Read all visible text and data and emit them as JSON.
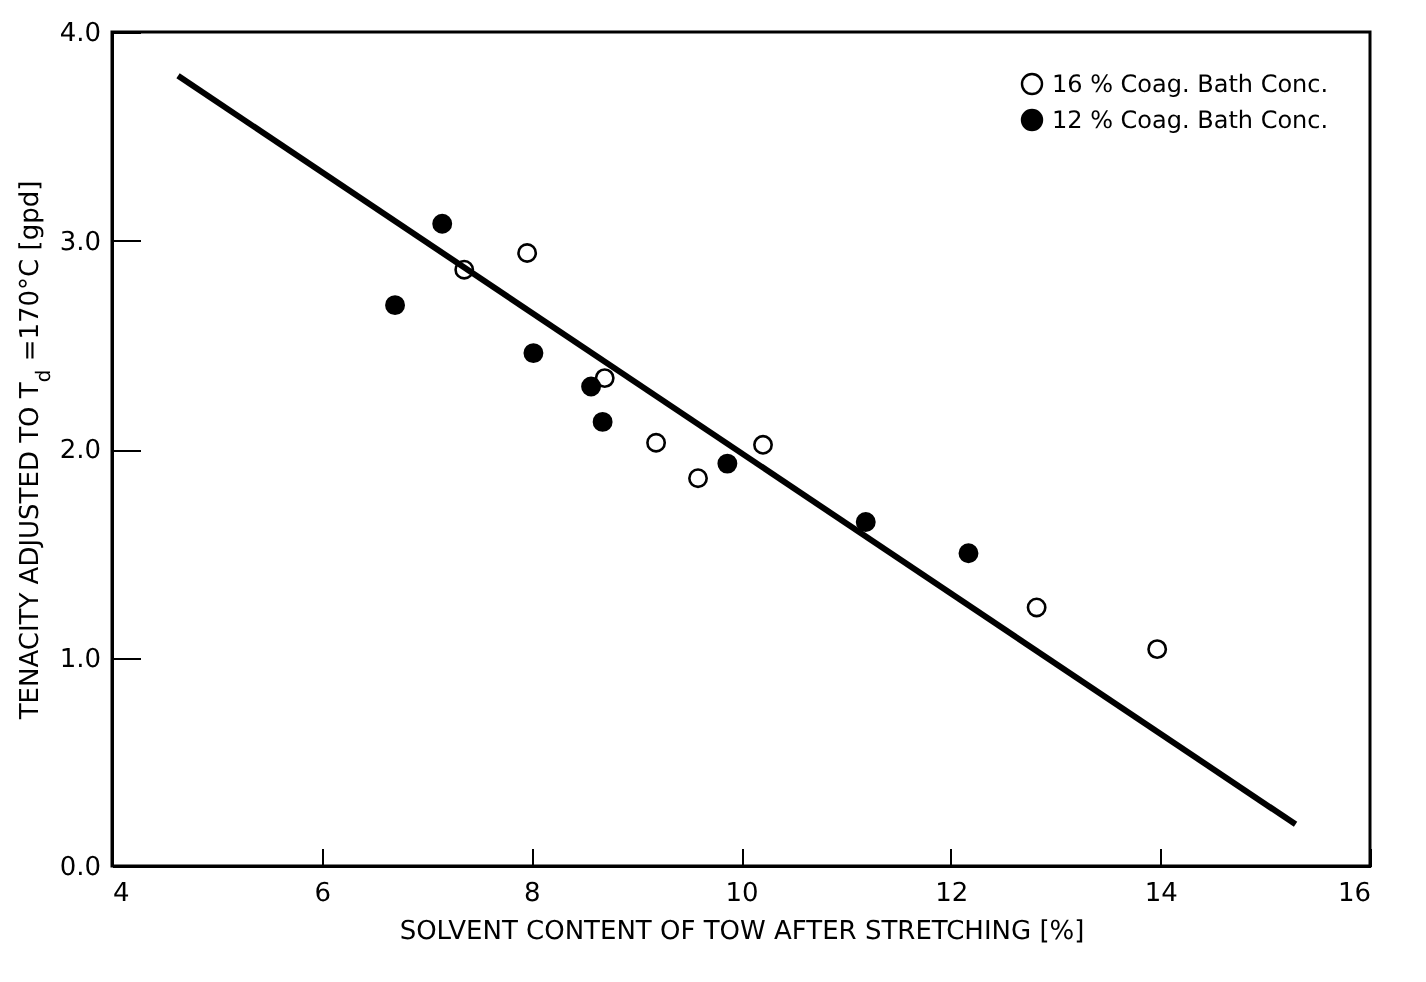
{
  "chart_data": {
    "type": "scatter",
    "xlabel": "SOLVENT CONTENT OF TOW AFTER STRETCHING [%]",
    "ylabel": "TENACITY ADJUSTED TO T$_{d}$ =170°C [gpd]",
    "xlim": [
      4,
      16
    ],
    "ylim": [
      0,
      4
    ],
    "xticks": [
      4,
      6,
      8,
      10,
      12,
      14,
      16
    ],
    "yticks": [
      {
        "value": 0,
        "label": "0.0"
      },
      {
        "value": 1,
        "label": "1.0"
      },
      {
        "value": 2,
        "label": "2.0"
      },
      {
        "value": 3,
        "label": "3.0"
      },
      {
        "value": 4,
        "label": "4.0"
      }
    ],
    "grid": false,
    "legend": "top right",
    "marker": "circle",
    "series": [
      {
        "name": "16 % Coag. Bath Conc.",
        "color": "#ffffff",
        "x": [
          7.36,
          7.96,
          8.7,
          9.19,
          9.59,
          10.21,
          12.82,
          13.97
        ],
        "values": [
          2.86,
          2.94,
          2.34,
          2.03,
          1.86,
          2.02,
          1.24,
          1.04
        ]
      },
      {
        "name": "12 % Coag. Bath Conc.",
        "color": "#000000",
        "x": [
          6.7,
          7.15,
          8.02,
          8.57,
          8.68,
          9.87,
          11.19,
          12.17
        ],
        "values": [
          2.69,
          3.08,
          2.46,
          2.3,
          2.13,
          1.93,
          1.65,
          1.5
        ]
      },
      {
        "type": "line",
        "color": "#000000",
        "line_style": "solid",
        "marker": "none",
        "x": [
          4.63,
          15.29
        ],
        "values": [
          3.79,
          0.2
        ]
      }
    ]
  }
}
